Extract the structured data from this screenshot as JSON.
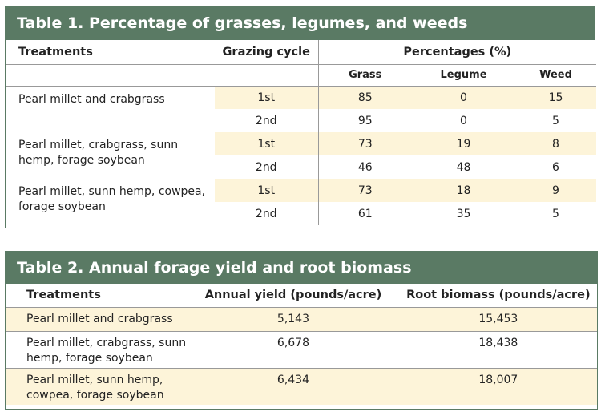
{
  "table1": {
    "title": "Table 1. Percentage of grasses, legumes, and weeds",
    "headers": {
      "treatments": "Treatments",
      "grazing_cycle": "Grazing cycle",
      "percentages": "Percentages (%)",
      "grass": "Grass",
      "legume": "Legume",
      "weed": "Weed"
    },
    "groups": [
      {
        "treatment": "Pearl millet and crabgrass",
        "rows": [
          {
            "cycle": "1st",
            "grass": "85",
            "legume": "0",
            "weed": "15"
          },
          {
            "cycle": "2nd",
            "grass": "95",
            "legume": "0",
            "weed": "5"
          }
        ]
      },
      {
        "treatment": "Pearl millet, crabgrass, sunn hemp, forage soybean",
        "rows": [
          {
            "cycle": "1st",
            "grass": "73",
            "legume": "19",
            "weed": "8"
          },
          {
            "cycle": "2nd",
            "grass": "46",
            "legume": "48",
            "weed": "6"
          }
        ]
      },
      {
        "treatment": "Pearl millet, sunn hemp, cowpea, forage soybean",
        "rows": [
          {
            "cycle": "1st",
            "grass": "73",
            "legume": "18",
            "weed": "9"
          },
          {
            "cycle": "2nd",
            "grass": "61",
            "legume": "35",
            "weed": "5"
          }
        ]
      }
    ]
  },
  "table2": {
    "title": "Table 2. Annual forage yield and root biomass",
    "headers": {
      "treatments": "Treatments",
      "annual_yield": "Annual yield (pounds/acre)",
      "root_biomass": "Root biomass (pounds/acre)"
    },
    "rows": [
      {
        "treatment": "Pearl millet and crabgrass",
        "yield": "5,143",
        "biomass": "15,453"
      },
      {
        "treatment": "Pearl millet, crabgrass, sunn hemp, forage soybean",
        "yield": "6,678",
        "biomass": "18,438"
      },
      {
        "treatment": "Pearl millet, sunn hemp, cowpea, forage soybean",
        "yield": "6,434",
        "biomass": "18,007"
      }
    ]
  },
  "colors": {
    "header_green": "#5a7a64",
    "row_shade": "#fdf4d9"
  }
}
